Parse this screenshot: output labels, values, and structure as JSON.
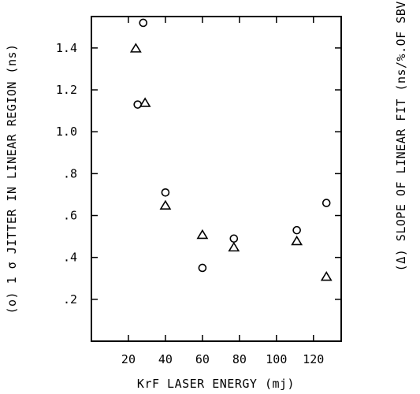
{
  "chart_data": {
    "type": "scatter",
    "xlabel": "KrF LASER ENERGY (mj)",
    "ylabel_left": "(o) 1 σ JITTER IN LINEAR REGION (ns)",
    "ylabel_right": "(Δ) SLOPE OF LINEAR FIT (ns/%.OF SBV)",
    "xlim": [
      0,
      135
    ],
    "ylim": [
      0,
      1.55
    ],
    "x_ticks": [
      20,
      40,
      60,
      80,
      100,
      120
    ],
    "x_tick_labels": [
      "20",
      "40",
      "60",
      "80",
      "100",
      "120"
    ],
    "y_ticks": [
      0.2,
      0.4,
      0.6,
      0.8,
      1.0,
      1.2,
      1.4
    ],
    "y_tick_labels": [
      ".2",
      ".4",
      ".6",
      ".8",
      "1.0",
      "1.2",
      "1.4"
    ],
    "grid": false,
    "series": [
      {
        "marker": "circle",
        "points": [
          {
            "x": 25,
            "y": 1.13
          },
          {
            "x": 28,
            "y": 1.52
          },
          {
            "x": 40,
            "y": 0.71
          },
          {
            "x": 60,
            "y": 0.35
          },
          {
            "x": 77,
            "y": 0.49
          },
          {
            "x": 111,
            "y": 0.53
          },
          {
            "x": 127,
            "y": 0.66
          }
        ]
      },
      {
        "marker": "triangle",
        "points": [
          {
            "x": 24,
            "y": 1.4
          },
          {
            "x": 29,
            "y": 1.14
          },
          {
            "x": 40,
            "y": 0.65
          },
          {
            "x": 60,
            "y": 0.51
          },
          {
            "x": 77,
            "y": 0.45
          },
          {
            "x": 111,
            "y": 0.48
          },
          {
            "x": 127,
            "y": 0.31
          }
        ]
      }
    ]
  }
}
